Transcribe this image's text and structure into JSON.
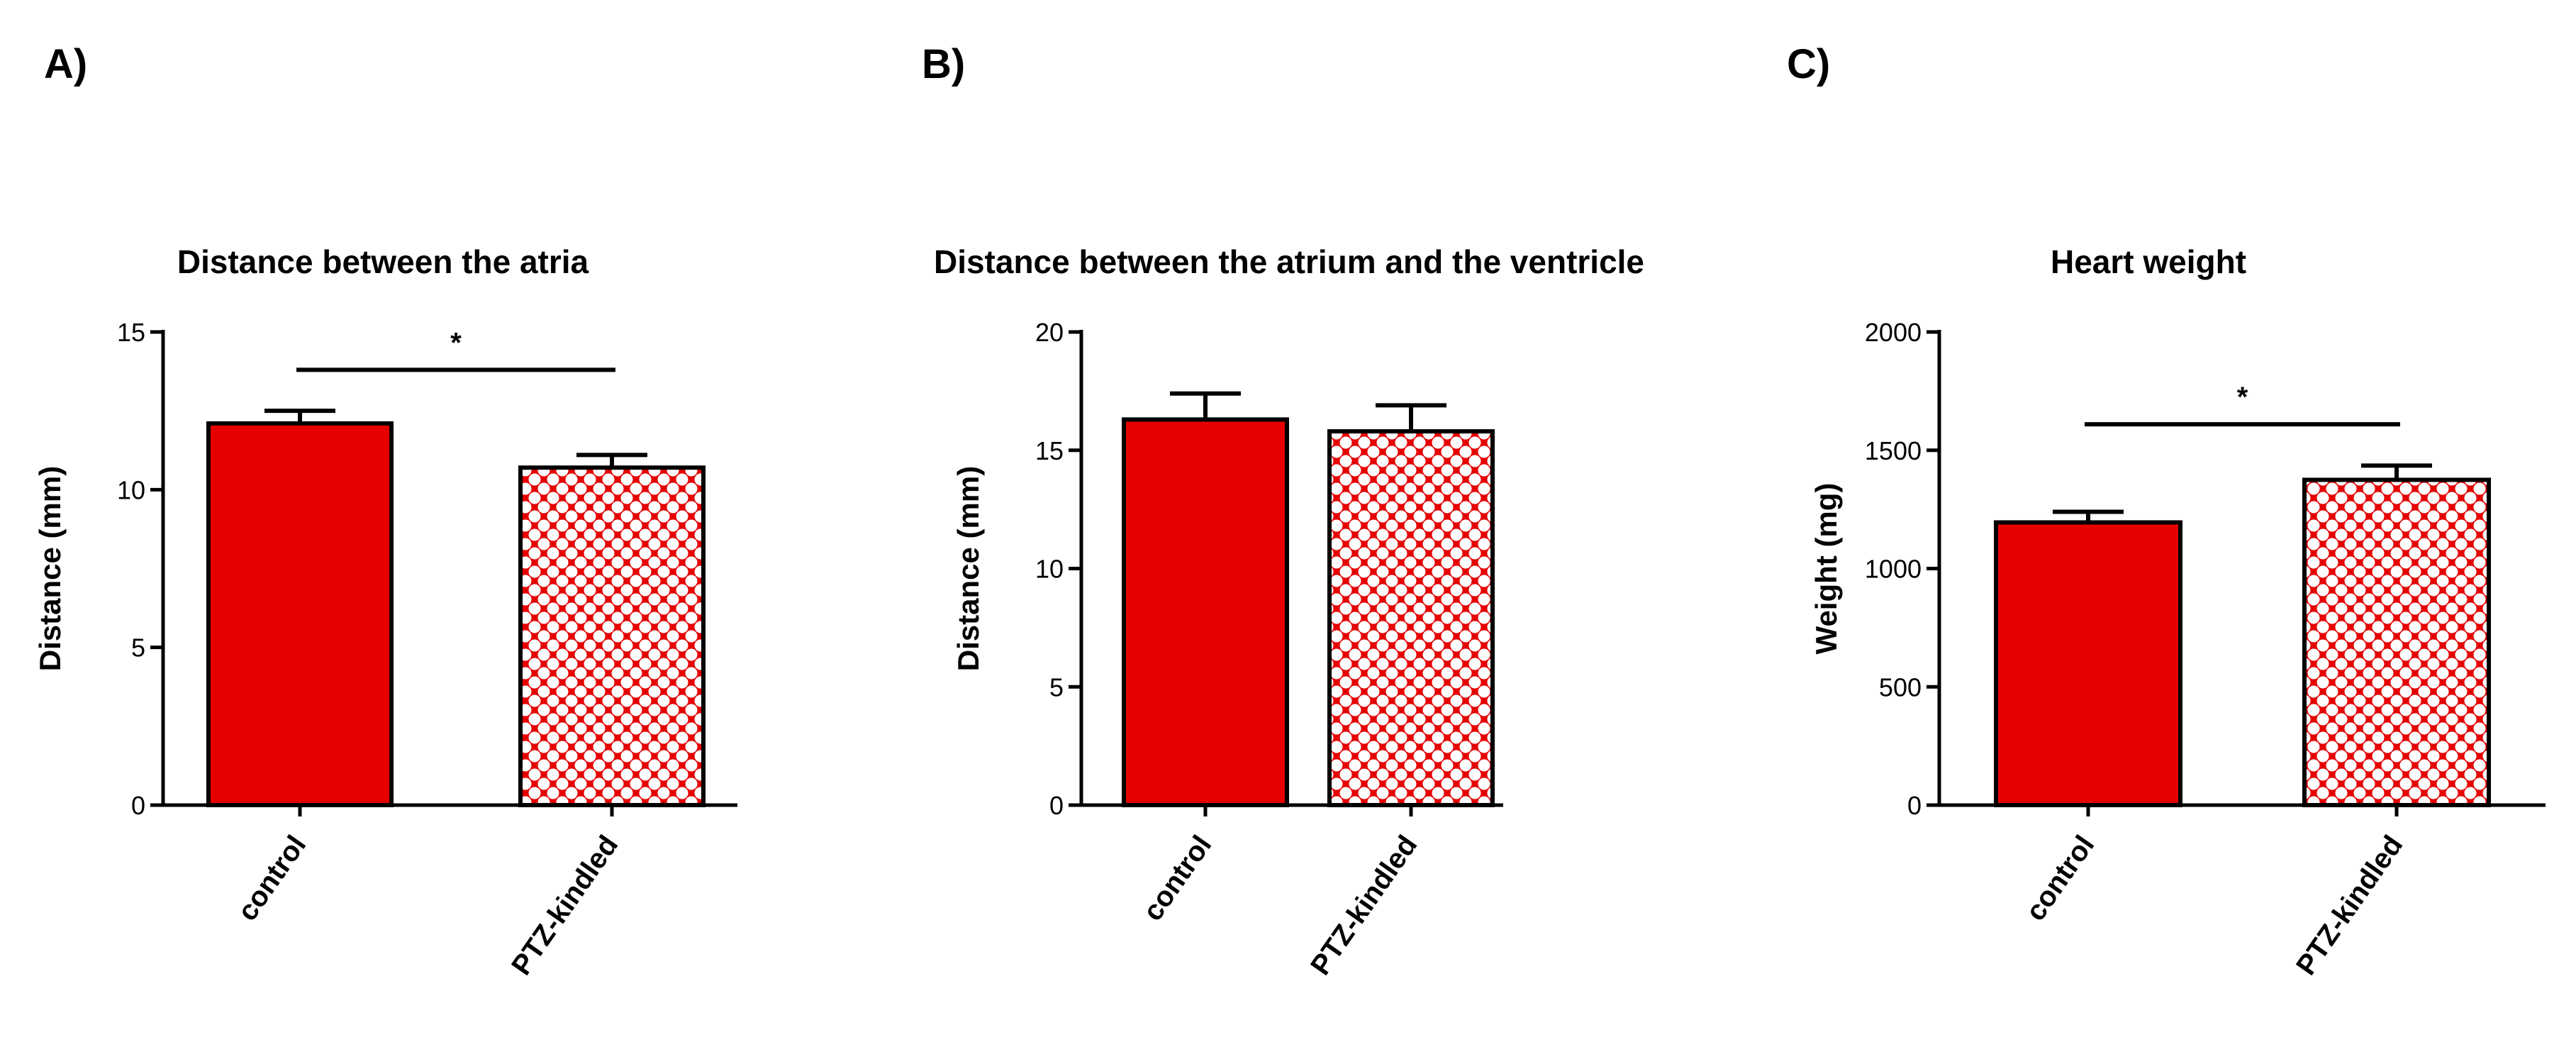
{
  "colors": {
    "bar_fill": "#e60000",
    "bar_pattern_bg": "#ffffff",
    "axis": "#000000",
    "text": "#000000"
  },
  "chart_data": [
    {
      "panel_label": "A)",
      "type": "bar",
      "title": "Distance between the atria",
      "ylabel": "Distance (mm)",
      "xlabel": "",
      "categories": [
        "control",
        "PTZ-kindled"
      ],
      "values": [
        12.1,
        10.7
      ],
      "errors": [
        0.4,
        0.4
      ],
      "patterns": [
        "solid",
        "crosshatch"
      ],
      "ylim": [
        0,
        15
      ],
      "yticks": [
        0,
        5,
        10,
        15
      ],
      "significance": {
        "from": 0,
        "to": 1,
        "label": "*",
        "y": 13.8
      },
      "grid": false,
      "legend": "none"
    },
    {
      "panel_label": "B)",
      "type": "bar",
      "title": "Distance between the atrium and the ventricle",
      "ylabel": "Distance (mm)",
      "xlabel": "",
      "categories": [
        "control",
        "PTZ-kindled"
      ],
      "values": [
        16.3,
        15.8
      ],
      "errors": [
        1.1,
        1.1
      ],
      "patterns": [
        "solid",
        "crosshatch"
      ],
      "ylim": [
        0,
        20
      ],
      "yticks": [
        0,
        5,
        10,
        15,
        20
      ],
      "significance": null,
      "grid": false,
      "legend": "none"
    },
    {
      "panel_label": "C)",
      "type": "bar",
      "title": "Heart weight",
      "ylabel": "Weight (mg)",
      "xlabel": "",
      "categories": [
        "control",
        "PTZ-kindled"
      ],
      "values": [
        1195,
        1375
      ],
      "errors": [
        45,
        60
      ],
      "patterns": [
        "solid",
        "crosshatch"
      ],
      "ylim": [
        0,
        2000
      ],
      "yticks": [
        0,
        500,
        1000,
        1500,
        2000
      ],
      "significance": {
        "from": 0,
        "to": 1,
        "label": "*",
        "y": 1610
      },
      "grid": false,
      "legend": "none"
    }
  ]
}
